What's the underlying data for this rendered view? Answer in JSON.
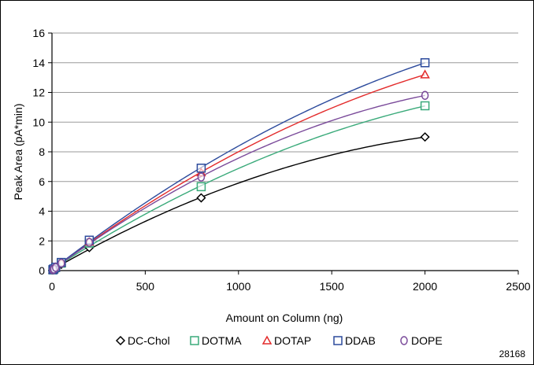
{
  "figure_number": "28168",
  "chart_data": {
    "type": "scatter",
    "title": "",
    "xlabel": "Amount on Column (ng)",
    "ylabel": "Peak Area (pA*min)",
    "xlim": [
      0,
      2500
    ],
    "ylim": [
      0,
      16
    ],
    "xticks": [
      0,
      500,
      1000,
      1500,
      2000,
      2500
    ],
    "yticks": [
      0,
      2,
      4,
      6,
      8,
      10,
      12,
      14,
      16
    ],
    "grid": "horizontal",
    "legend_position": "bottom",
    "fit": "polynomial trendline",
    "x": [
      5,
      10,
      20,
      50,
      200,
      800,
      2000
    ],
    "series": [
      {
        "name": "DC-Chol",
        "marker": "diamond",
        "color": "#000000",
        "values": [
          0.04,
          0.08,
          0.17,
          0.42,
          1.55,
          4.9,
          9.0
        ]
      },
      {
        "name": "DOTMA",
        "marker": "square",
        "color": "#3aaa7a",
        "values": [
          0.05,
          0.1,
          0.2,
          0.5,
          1.85,
          5.65,
          11.1
        ]
      },
      {
        "name": "DOTAP",
        "marker": "triangle",
        "color": "#e32b2b",
        "values": [
          0.05,
          0.11,
          0.22,
          0.52,
          1.95,
          6.6,
          13.2
        ]
      },
      {
        "name": "DDAB",
        "marker": "square",
        "color": "#2c4a9c",
        "values": [
          0.06,
          0.12,
          0.23,
          0.55,
          2.05,
          6.9,
          14.0
        ]
      },
      {
        "name": "DOPE",
        "marker": "circle",
        "color": "#7a4a9a",
        "values": [
          0.05,
          0.1,
          0.21,
          0.5,
          1.9,
          6.3,
          11.8
        ]
      }
    ]
  }
}
